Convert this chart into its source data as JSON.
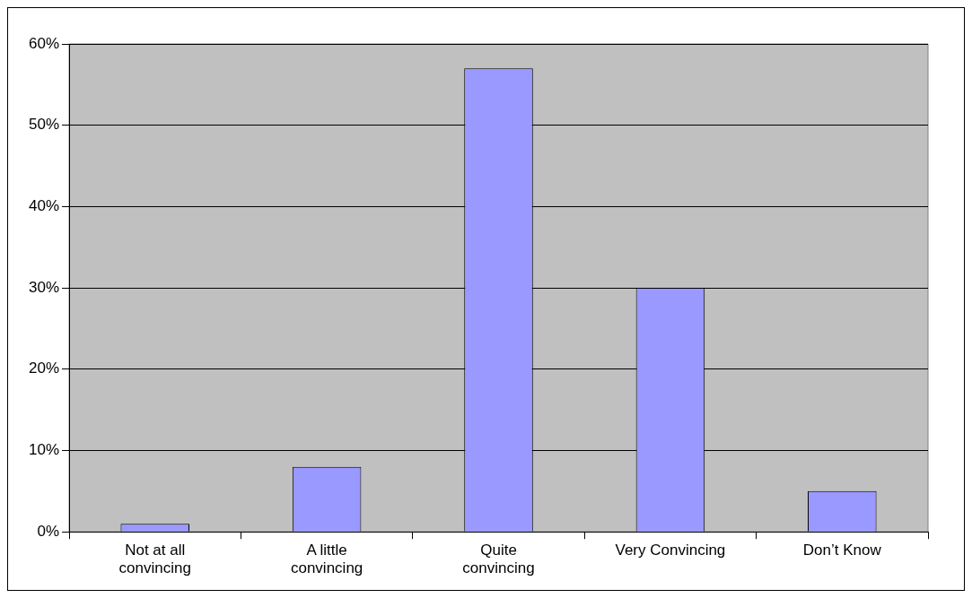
{
  "chart_data": {
    "type": "bar",
    "categories": [
      "Not at all\nconvincing",
      "A little\nconvincing",
      "Quite\nconvincing",
      "Very Convincing",
      "Don’t Know"
    ],
    "values": [
      1,
      8,
      57,
      30,
      5
    ],
    "color": "#9999ff",
    "ylim": [
      0,
      60
    ],
    "yticks": [
      {
        "value": 0,
        "label": "0%"
      },
      {
        "value": 10,
        "label": "10%"
      },
      {
        "value": 20,
        "label": "20%"
      },
      {
        "value": 30,
        "label": "30%"
      },
      {
        "value": 40,
        "label": "40%"
      },
      {
        "value": 50,
        "label": "50%"
      },
      {
        "value": 60,
        "label": "60%"
      }
    ],
    "grid": "y",
    "legend": false
  }
}
